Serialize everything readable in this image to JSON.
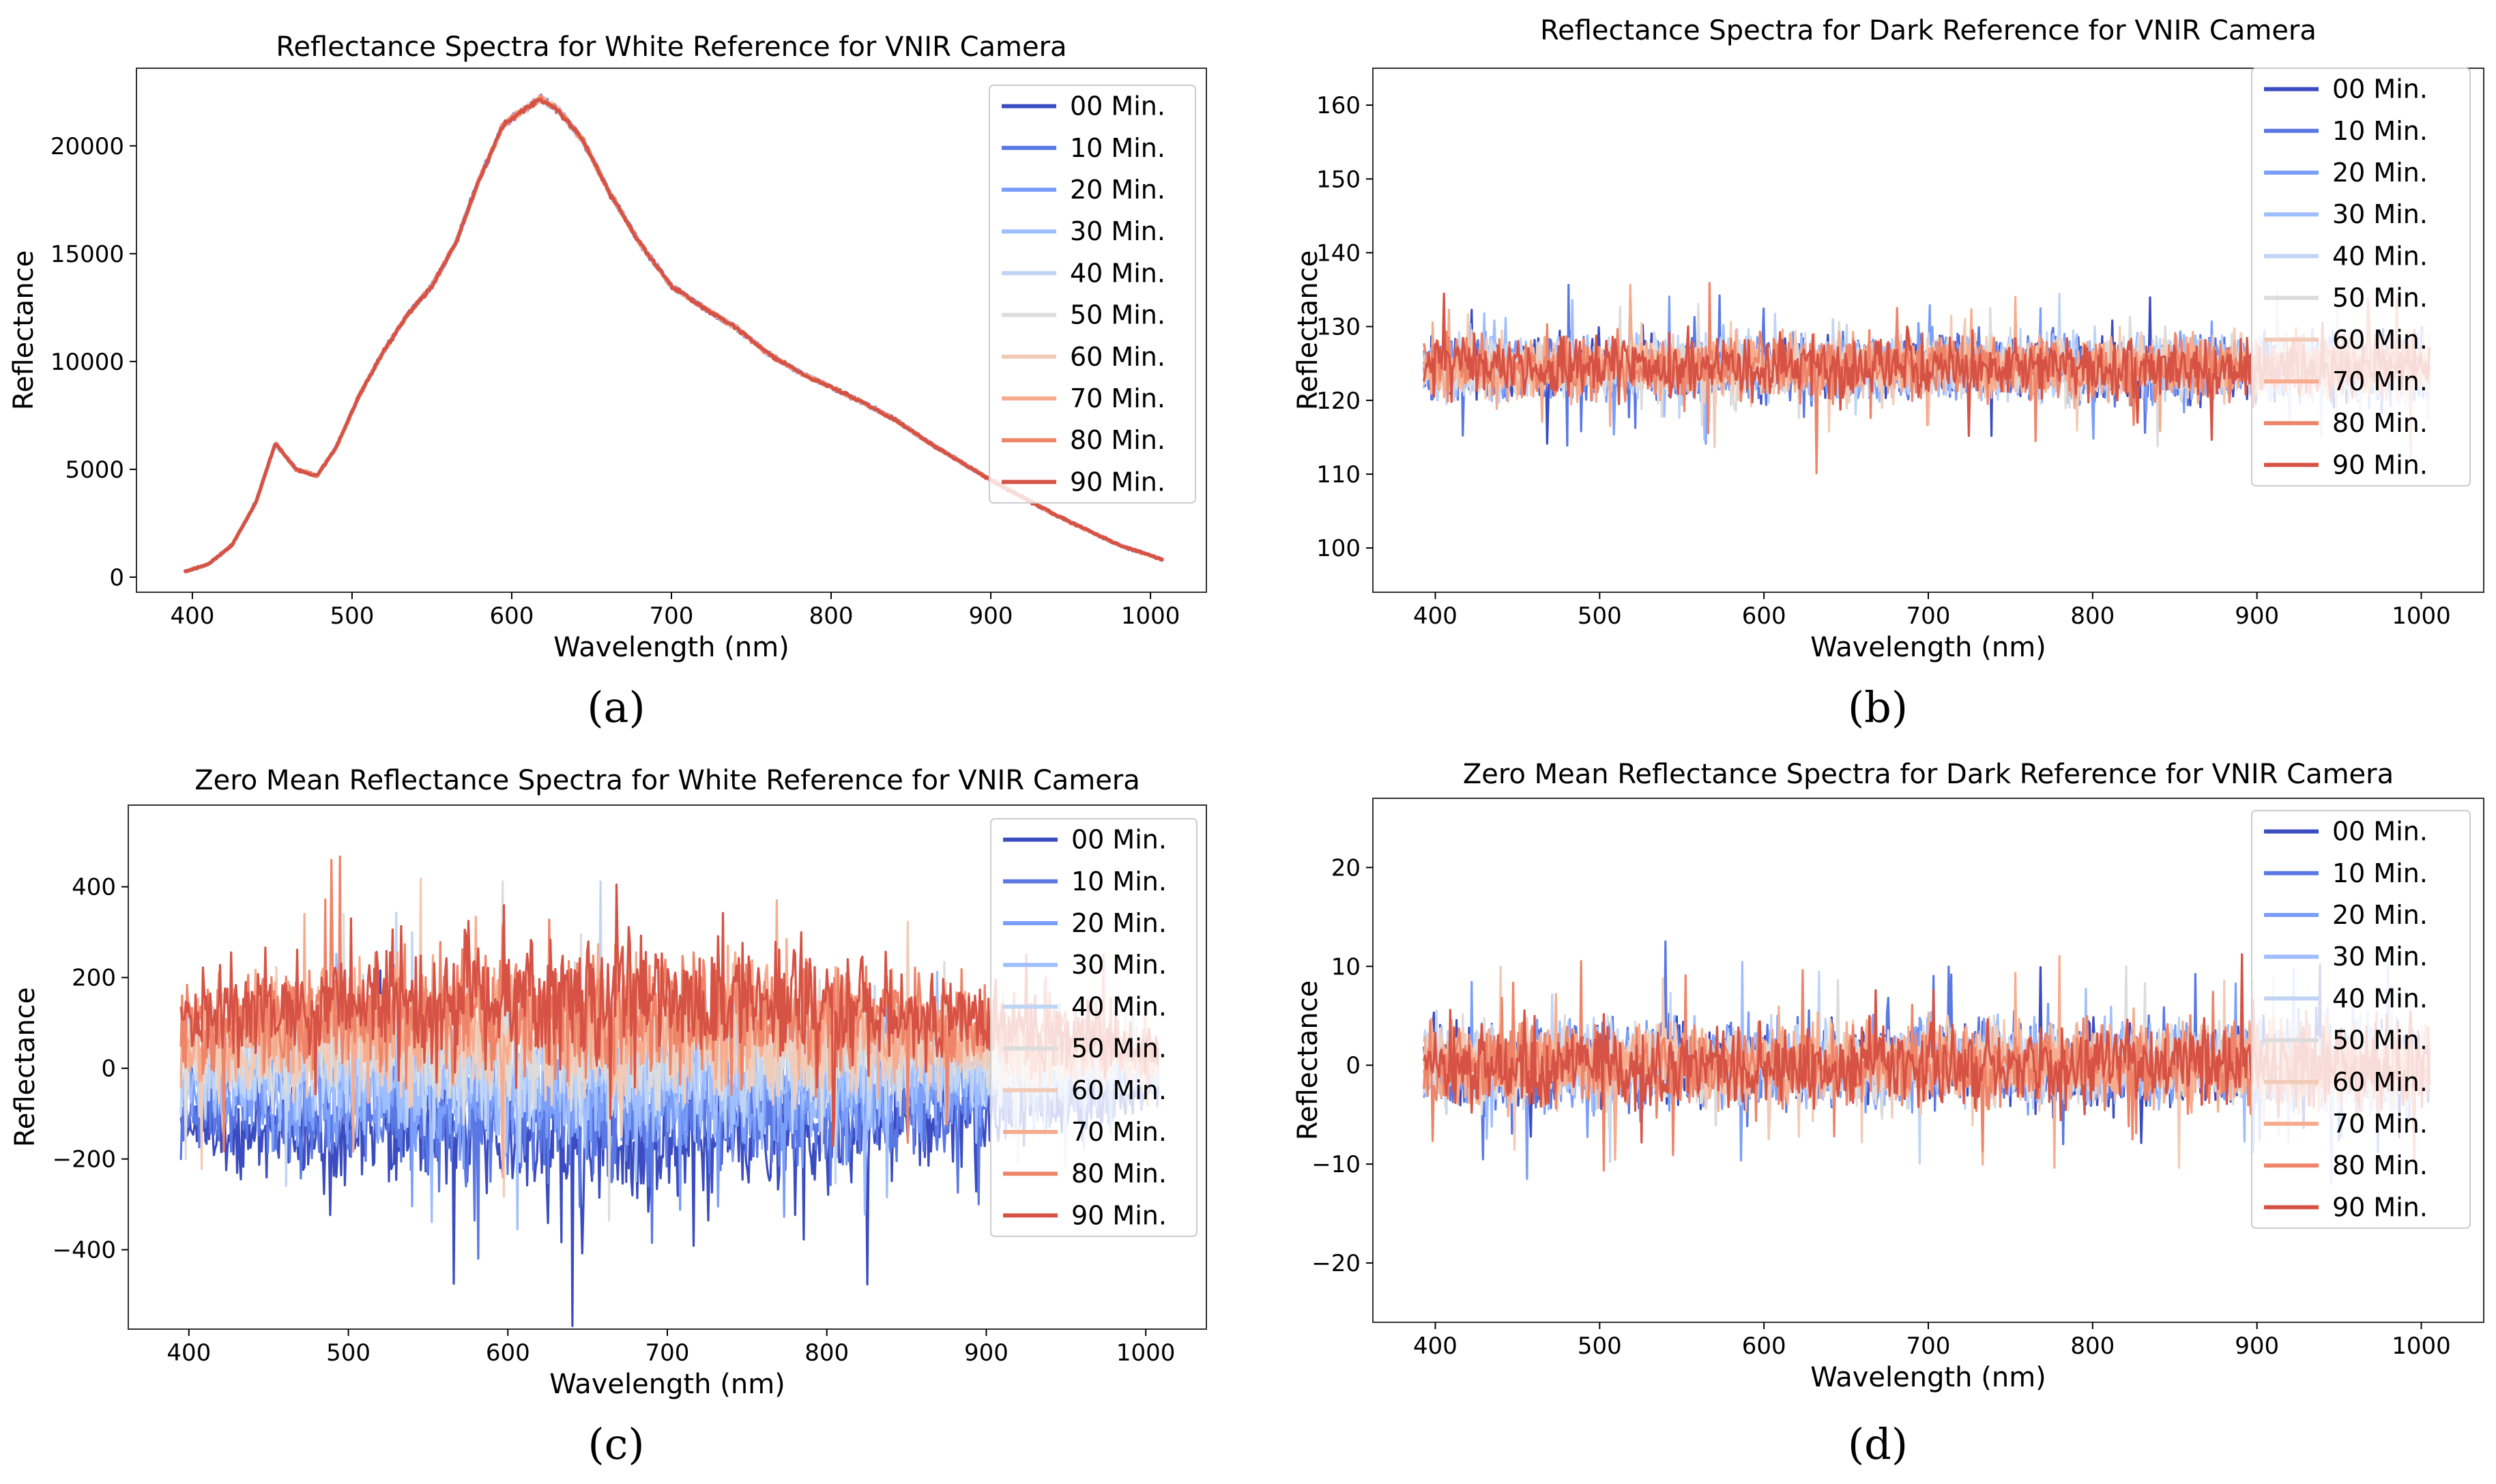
{
  "panel_labels": [
    "(a)",
    "(b)",
    "(c)",
    "(d)"
  ],
  "series_colors": [
    "#3b4cc0",
    "#5a78e4",
    "#7b9ff9",
    "#9ebeff",
    "#c0d4f5",
    "#dddcdc",
    "#f2cbb7",
    "#f7ac8e",
    "#ee8468",
    "#d65244"
  ],
  "chart_data": [
    {
      "type": "line",
      "title": "Reflectance Spectra for White Reference for VNIR Camera",
      "xlabel": "Wavelength (nm)",
      "ylabel": "Reflectance",
      "xlim": [
        365,
        1035
      ],
      "ylim": [
        -700,
        23600
      ],
      "xticks": [
        400,
        500,
        600,
        700,
        800,
        900,
        1000
      ],
      "yticks": [
        0,
        5000,
        10000,
        15000,
        20000
      ],
      "legend_position": "upper-right",
      "series": [
        {
          "name": "00 Min."
        },
        {
          "name": "10 Min."
        },
        {
          "name": "20 Min."
        },
        {
          "name": "30 Min."
        },
        {
          "name": "40 Min."
        },
        {
          "name": "50 Min."
        },
        {
          "name": "60 Min."
        },
        {
          "name": "70 Min."
        },
        {
          "name": "80 Min."
        },
        {
          "name": "90 Min."
        }
      ],
      "x": [
        395,
        410,
        425,
        440,
        452,
        465,
        478,
        490,
        505,
        520,
        535,
        550,
        565,
        580,
        595,
        610,
        618,
        630,
        645,
        660,
        680,
        700,
        720,
        740,
        760,
        780,
        800,
        820,
        840,
        860,
        880,
        900,
        920,
        940,
        960,
        980,
        1008
      ],
      "y": [
        250,
        600,
        1500,
        3500,
        6200,
        5000,
        4700,
        6000,
        8500,
        10500,
        12200,
        13500,
        15500,
        18500,
        21000,
        21800,
        22200,
        21600,
        20200,
        18000,
        15500,
        13500,
        12500,
        11600,
        10400,
        9500,
        8800,
        8100,
        7300,
        6300,
        5400,
        4500,
        3700,
        2900,
        2200,
        1500,
        800
      ],
      "noise": 160,
      "noise_type": "mult"
    },
    {
      "type": "line",
      "title": "Reflectance Spectra for Dark Reference for VNIR Camera",
      "xlabel": "Wavelength (nm)",
      "ylabel": "Reflectance",
      "xlim": [
        362,
        1038
      ],
      "ylim": [
        94,
        165
      ],
      "xticks": [
        400,
        500,
        600,
        700,
        800,
        900,
        1000
      ],
      "yticks": [
        100,
        110,
        120,
        130,
        140,
        150,
        160
      ],
      "legend_position": "upper-right",
      "series": [
        {
          "name": "00 Min."
        },
        {
          "name": "10 Min."
        },
        {
          "name": "20 Min."
        },
        {
          "name": "30 Min."
        },
        {
          "name": "40 Min."
        },
        {
          "name": "50 Min."
        },
        {
          "name": "60 Min."
        },
        {
          "name": "70 Min."
        },
        {
          "name": "80 Min."
        },
        {
          "name": "90 Min."
        }
      ],
      "x": [
        393,
        1005
      ],
      "y": [
        124.5,
        124.5
      ],
      "noise": 6,
      "noise_type": "add"
    },
    {
      "type": "line",
      "title": "Zero Mean Reflectance Spectra for White Reference for VNIR Camera",
      "xlabel": "Wavelength (nm)",
      "ylabel": "Reflectance",
      "xlim": [
        362,
        1038
      ],
      "ylim": [
        -575,
        580
      ],
      "xticks": [
        400,
        500,
        600,
        700,
        800,
        900,
        1000
      ],
      "yticks": [
        -400,
        -200,
        0,
        200,
        400
      ],
      "legend_position": "upper-right",
      "series": [
        {
          "name": "00 Min."
        },
        {
          "name": "10 Min."
        },
        {
          "name": "20 Min."
        },
        {
          "name": "30 Min."
        },
        {
          "name": "40 Min."
        },
        {
          "name": "50 Min."
        },
        {
          "name": "60 Min."
        },
        {
          "name": "70 Min."
        },
        {
          "name": "80 Min."
        },
        {
          "name": "90 Min."
        }
      ],
      "x": [
        395,
        1008
      ],
      "y": [
        0,
        0
      ],
      "noise": 150,
      "noise_type": "envelope",
      "drift": [
        -160,
        -110,
        -60,
        -20,
        20,
        50,
        70,
        95,
        130,
        160
      ]
    },
    {
      "type": "line",
      "title": "Zero Mean Reflectance Spectra for Dark Reference for VNIR Camera",
      "xlabel": "Wavelength (nm)",
      "ylabel": "Reflectance",
      "xlim": [
        362,
        1038
      ],
      "ylim": [
        -26,
        27
      ],
      "xticks": [
        400,
        500,
        600,
        700,
        800,
        900,
        1000
      ],
      "yticks": [
        -20,
        -10,
        0,
        10,
        20
      ],
      "legend_position": "upper-right",
      "series": [
        {
          "name": "00 Min."
        },
        {
          "name": "10 Min."
        },
        {
          "name": "20 Min."
        },
        {
          "name": "30 Min."
        },
        {
          "name": "40 Min."
        },
        {
          "name": "50 Min."
        },
        {
          "name": "60 Min."
        },
        {
          "name": "70 Min."
        },
        {
          "name": "80 Min."
        },
        {
          "name": "90 Min."
        }
      ],
      "x": [
        393,
        1005
      ],
      "y": [
        0,
        0
      ],
      "noise": 6,
      "noise_type": "add"
    }
  ]
}
